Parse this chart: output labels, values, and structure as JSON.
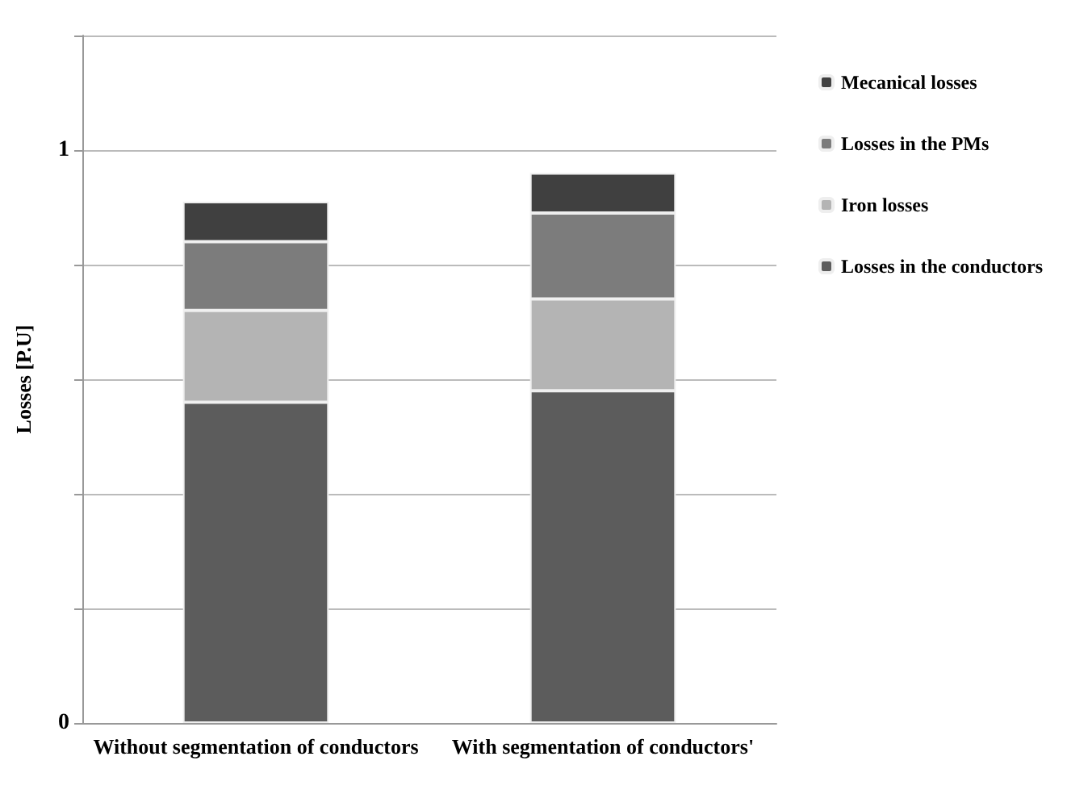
{
  "chart_data": {
    "type": "bar",
    "stacked": true,
    "ylabel": "Losses [P.U]",
    "categories": [
      "Without segmentation of conductors",
      "With segmentation of conductors'"
    ],
    "series": [
      {
        "name": "Losses in the conductors",
        "color": "#5c5c5c",
        "values": [
          0.56,
          0.58
        ]
      },
      {
        "name": "Iron losses",
        "color": "#b4b4b4",
        "values": [
          0.16,
          0.16
        ]
      },
      {
        "name": "Losses in the PMs",
        "color": "#7c7c7c",
        "values": [
          0.12,
          0.15
        ]
      },
      {
        "name": "Mecanical losses",
        "color": "#404040",
        "values": [
          0.07,
          0.07
        ]
      }
    ],
    "ylim": [
      0,
      1.2
    ],
    "yticks": [
      0,
      {
        "value": 0.2,
        "label": null
      },
      {
        "value": 0.4,
        "label": null
      },
      {
        "value": 0.6,
        "label": null
      },
      {
        "value": 0.8,
        "label": null
      },
      1,
      {
        "value": 1.2,
        "label": null
      }
    ],
    "grid": "y",
    "legend": "right"
  }
}
